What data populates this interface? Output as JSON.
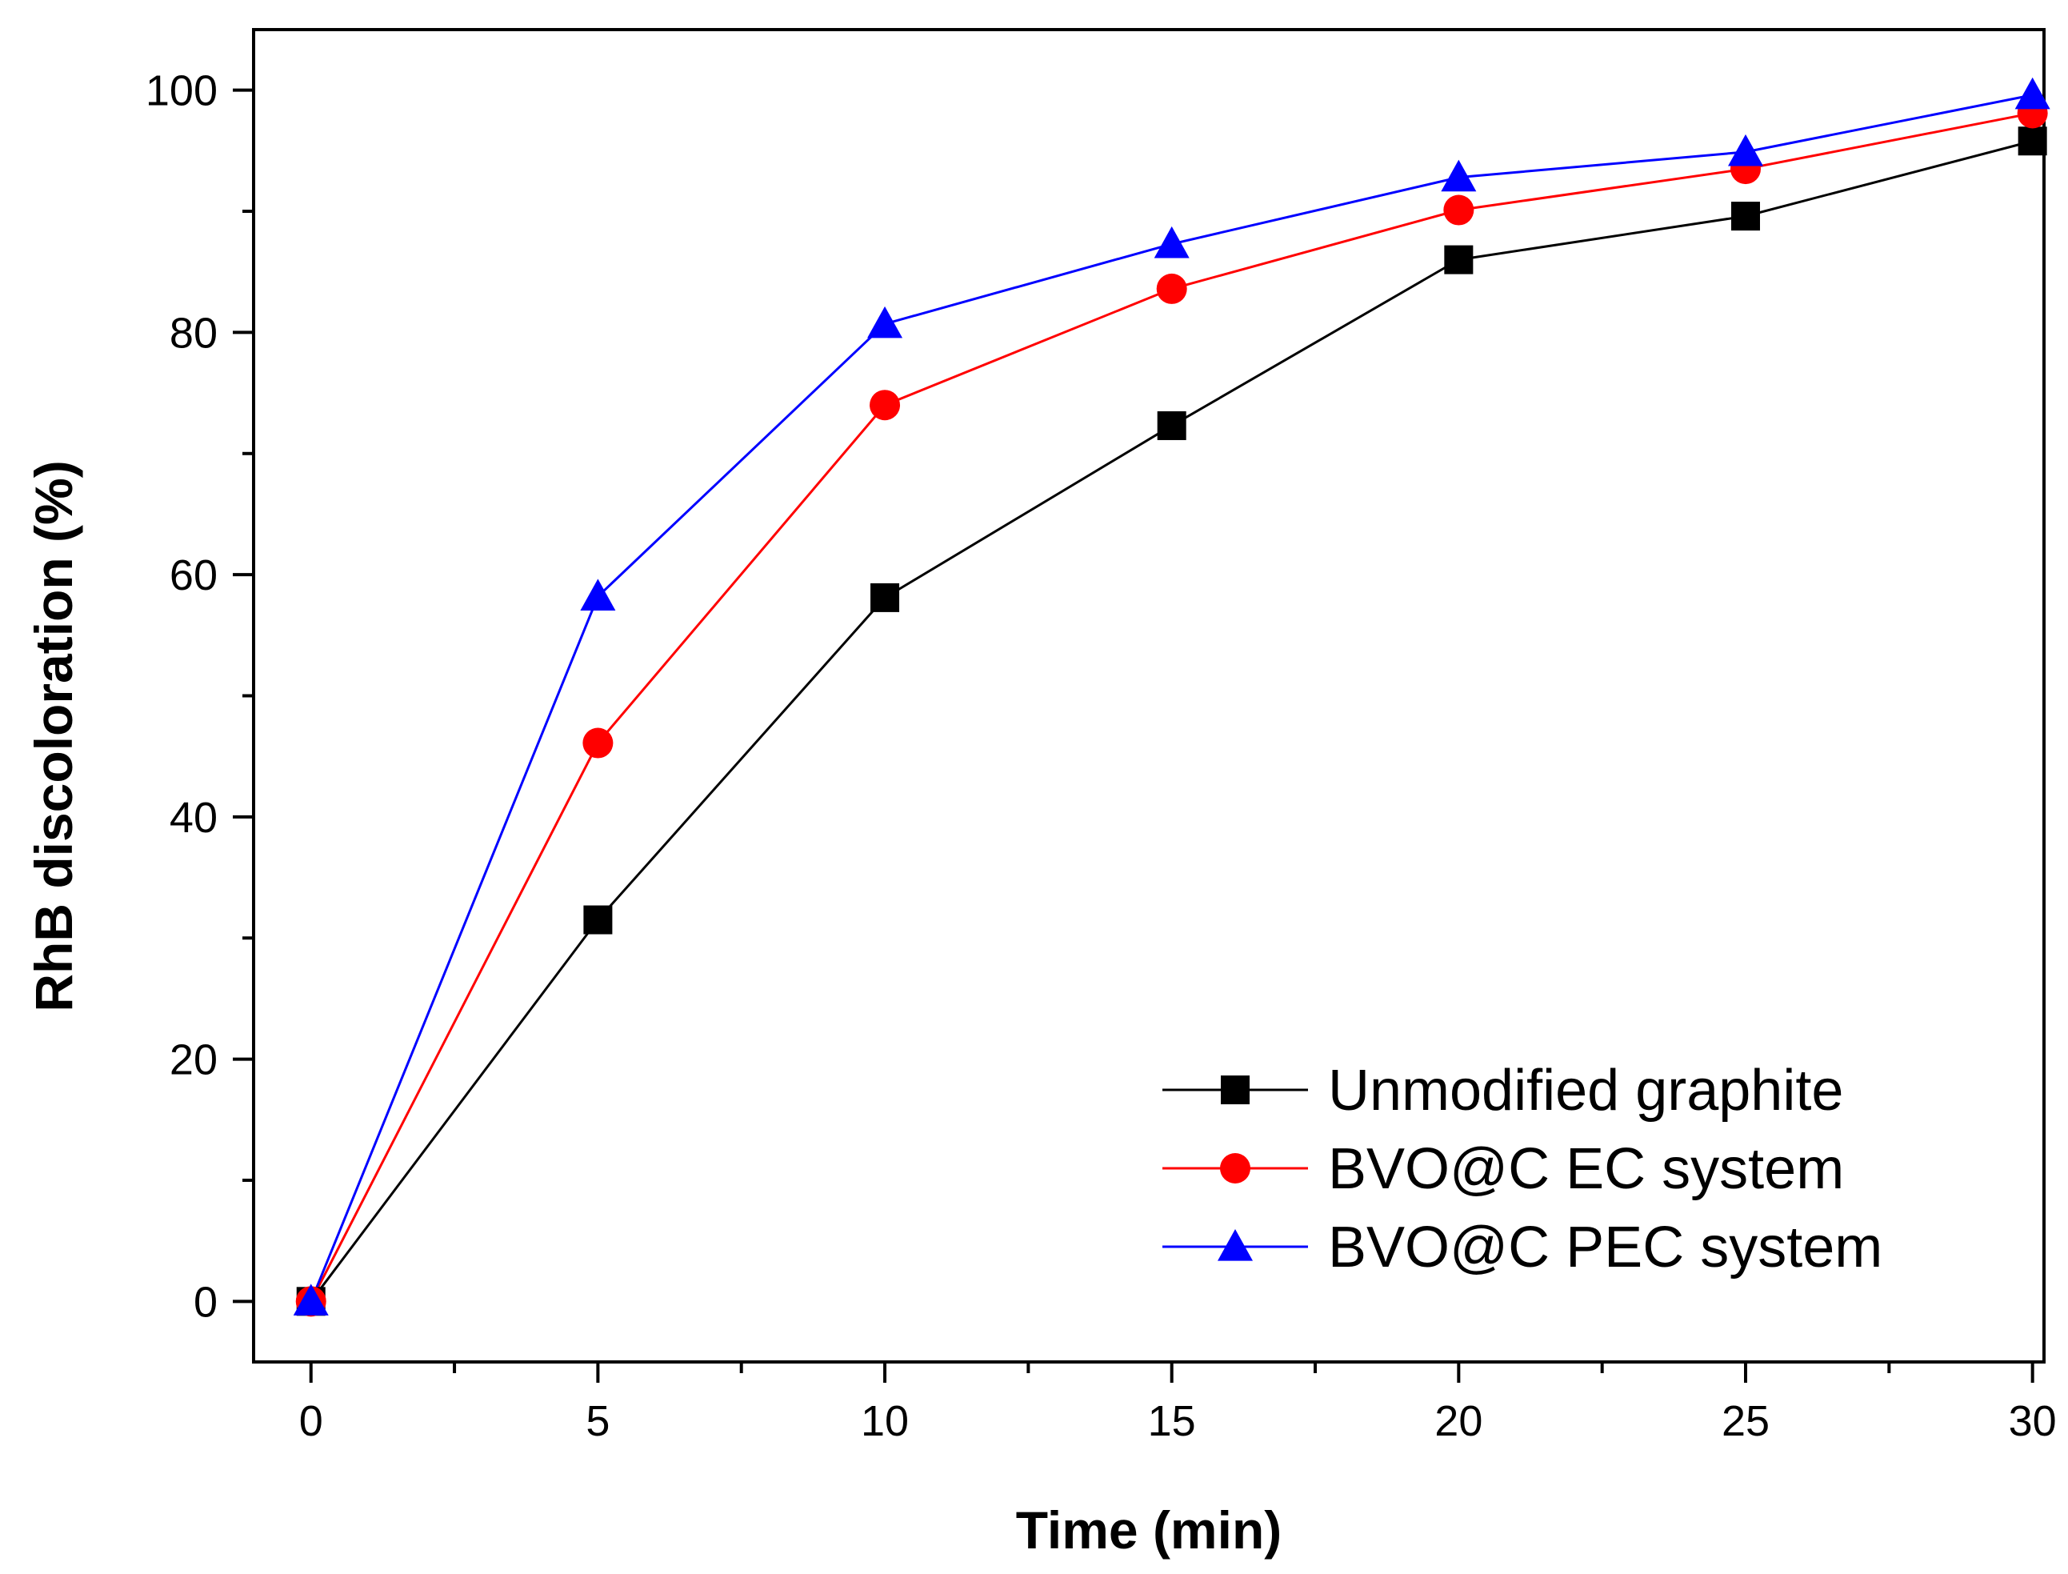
{
  "chart_data": {
    "type": "line",
    "title": "",
    "xlabel": "Time (min)",
    "ylabel": "RhB discoloration (%)",
    "xlim": [
      -1,
      30.2
    ],
    "ylim": [
      -5,
      105
    ],
    "x_ticks": [
      0,
      5,
      10,
      15,
      20,
      25,
      30
    ],
    "y_ticks": [
      0,
      20,
      40,
      60,
      80,
      100
    ],
    "x_minor_ticks": [
      2.5,
      7.5,
      12.5,
      17.5,
      22.5,
      27.5
    ],
    "y_minor_ticks": [
      10,
      30,
      50,
      70,
      90
    ],
    "legend_position": "bottom-right",
    "x": [
      0,
      5,
      10,
      15,
      20,
      25,
      30
    ],
    "series": [
      {
        "name": "Unmodified graphite",
        "color": "#000000",
        "marker": "square",
        "values": [
          0,
          31.5,
          58.1,
          72.3,
          86.0,
          89.6,
          95.8
        ]
      },
      {
        "name": "BVO@C EC system",
        "color": "#ff0000",
        "marker": "circle",
        "values": [
          0,
          46.1,
          74.0,
          83.6,
          90.1,
          93.5,
          98.1
        ]
      },
      {
        "name": "BVO@C PEC system",
        "color": "#0000ff",
        "marker": "triangle",
        "values": [
          0,
          58.2,
          80.7,
          87.3,
          92.8,
          94.9,
          99.6
        ]
      }
    ]
  }
}
